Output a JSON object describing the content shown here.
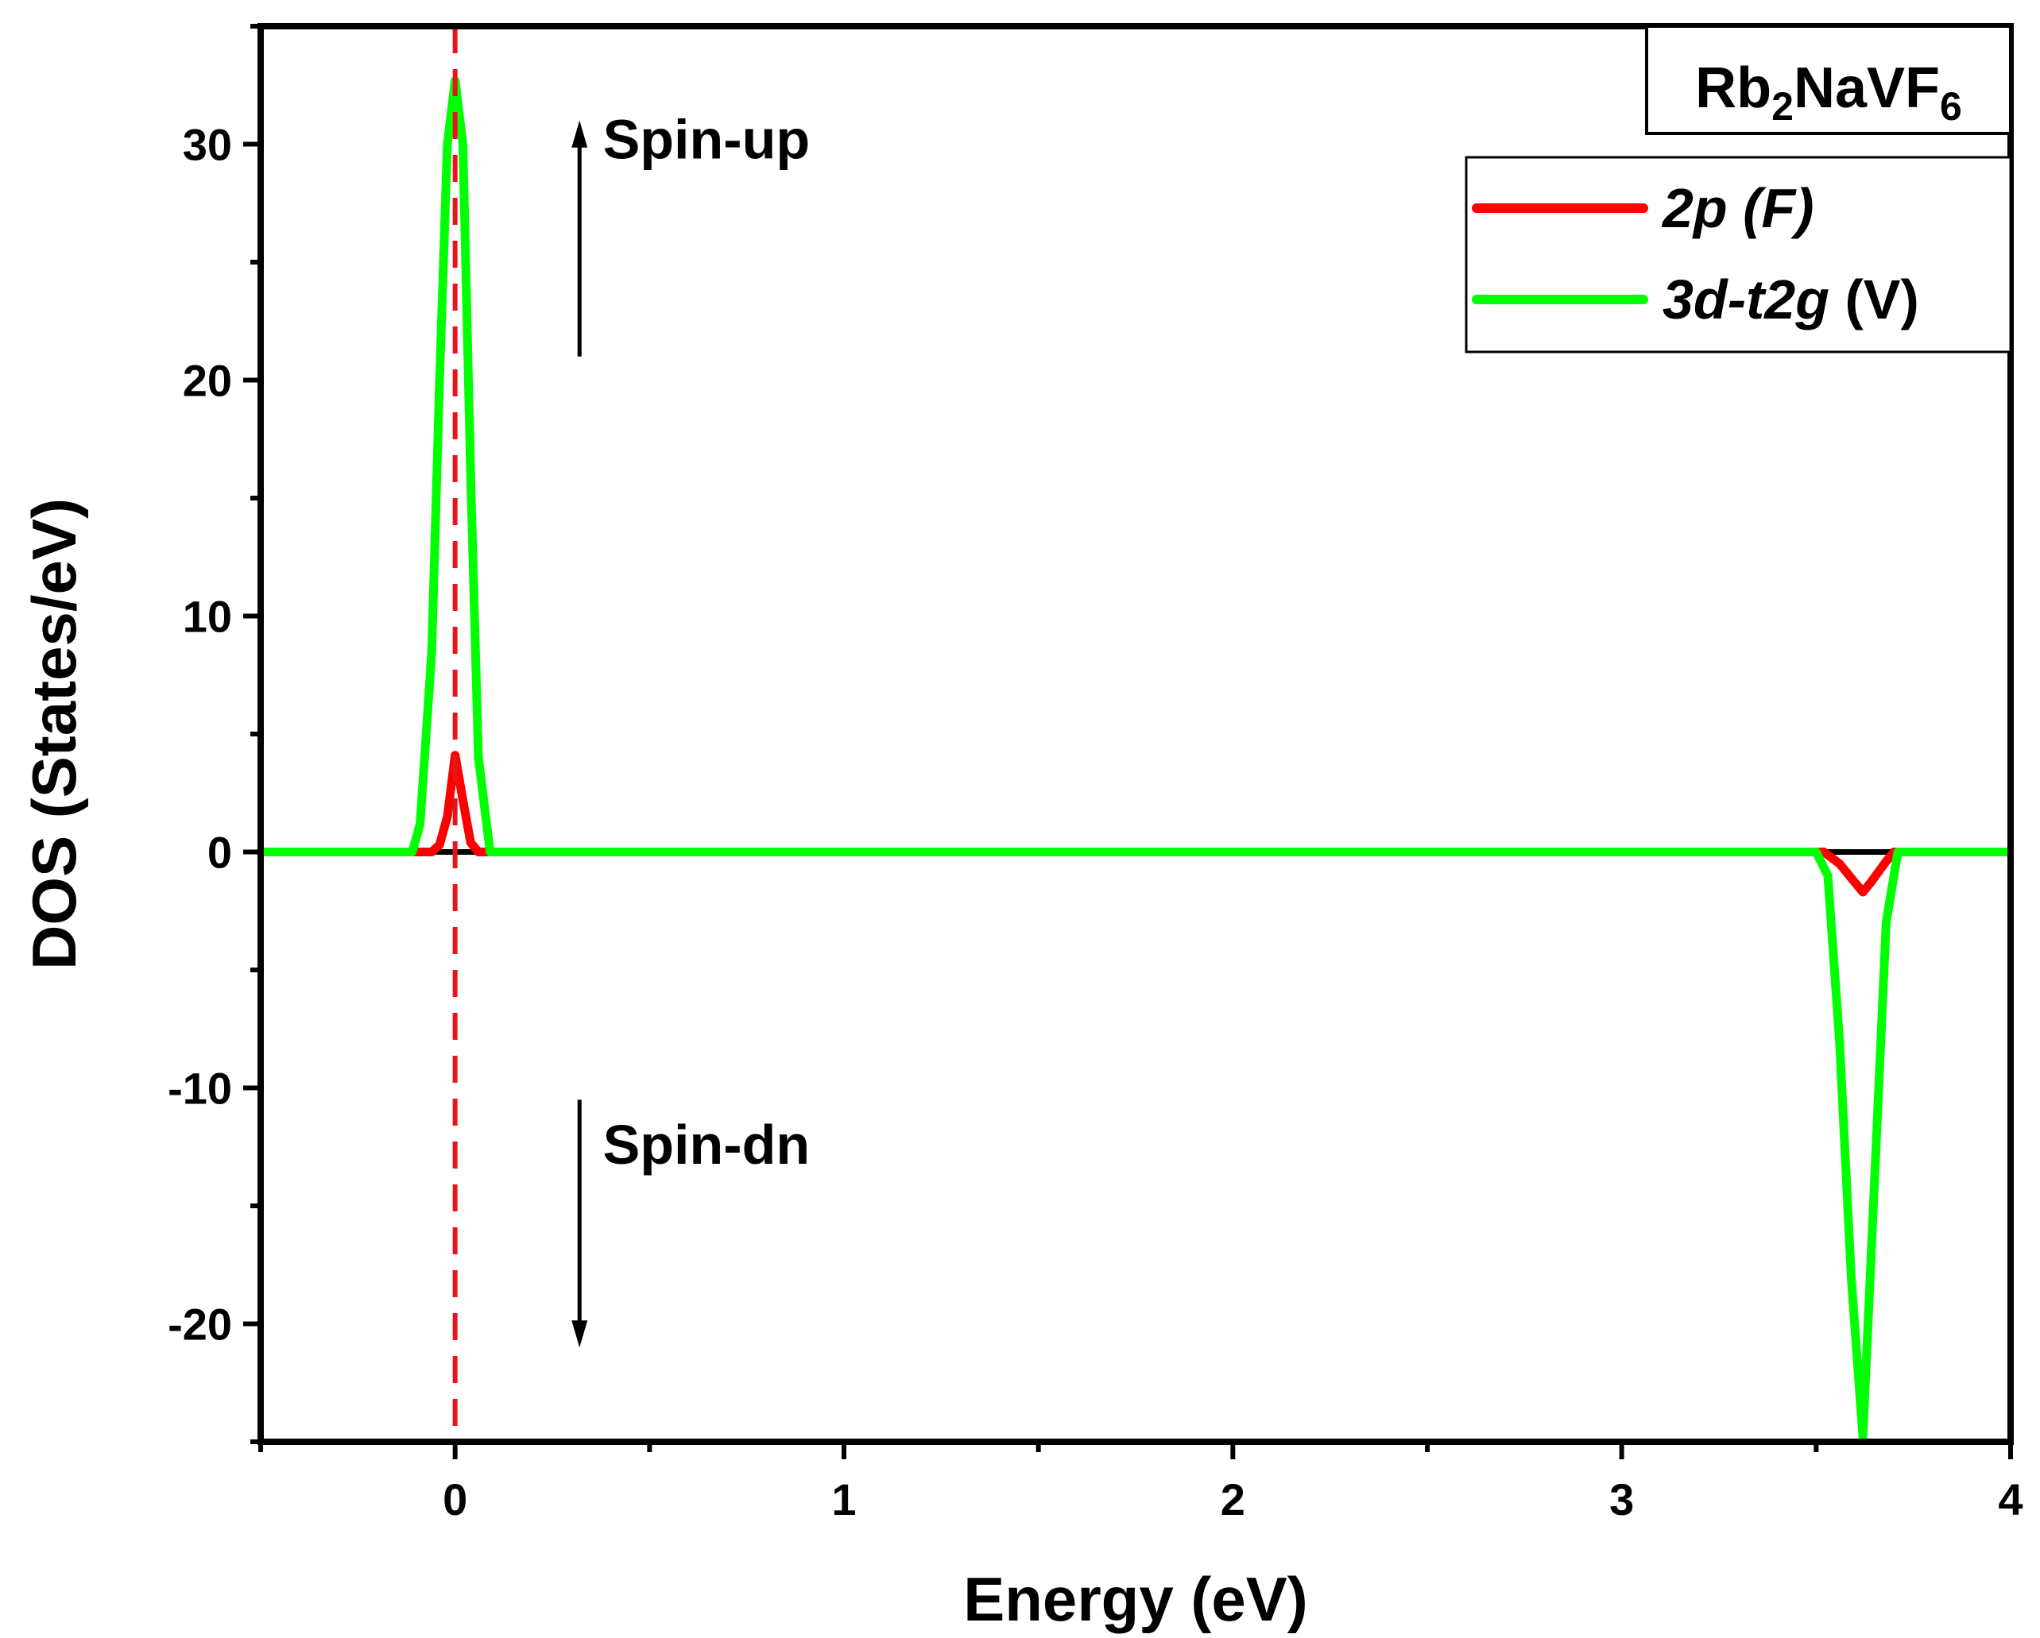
{
  "chart_data": {
    "type": "line",
    "title": "",
    "xlabel": "Energy (eV)",
    "ylabel": "DOS (States/eV)",
    "xlim": [
      -0.5,
      4
    ],
    "ylim": [
      -25,
      35
    ],
    "xticks": [
      0,
      1,
      2,
      3,
      4
    ],
    "yticks": [
      -20,
      -10,
      0,
      10,
      20,
      30
    ],
    "xtick_labels": [
      "0",
      "1",
      "2",
      "3",
      "4"
    ],
    "ytick_labels": [
      "-20",
      "-10",
      "0",
      "10",
      "20",
      "30"
    ],
    "grid": false,
    "legend_position": "top-right",
    "sample_label": {
      "base": "Rb",
      "sub1": "2",
      "mid": "NaVF",
      "sub2": "6"
    },
    "fermi_level": {
      "x": 0,
      "color": "#e8141a",
      "style": "dashed"
    },
    "annotations": [
      {
        "text": "Spin-up",
        "arrow": "up",
        "arrow_x": 0.32,
        "arrow_from": 21,
        "arrow_to": 31,
        "text_x": 0.38,
        "text_y": 30.2
      },
      {
        "text": "Spin-dn",
        "arrow": "down",
        "arrow_x": 0.32,
        "arrow_from": -10.5,
        "arrow_to": -21,
        "text_x": 0.38,
        "text_y": -12.4
      }
    ],
    "series": [
      {
        "name": "2p (F)",
        "name_main": "2p (F)",
        "name_rest": "",
        "color": "#ff0000",
        "x": [
          -0.5,
          -0.06,
          -0.04,
          -0.02,
          0.0,
          0.02,
          0.04,
          0.06,
          3.52,
          3.56,
          3.6,
          3.62,
          3.64,
          3.68,
          3.7,
          4.0
        ],
        "y": [
          0,
          0,
          0.3,
          1.5,
          4.1,
          2.2,
          0.4,
          0,
          0,
          -0.5,
          -1.3,
          -1.7,
          -1.3,
          -0.4,
          0,
          0
        ]
      },
      {
        "name": "3d-t2g (V)",
        "name_main": "3d-t2g",
        "name_rest": " (V)",
        "color": "#00ff00",
        "x": [
          -0.5,
          -0.11,
          -0.09,
          -0.06,
          -0.04,
          -0.02,
          0.0,
          0.02,
          0.04,
          0.06,
          0.09,
          3.5,
          3.53,
          3.56,
          3.59,
          3.62,
          3.65,
          3.68,
          3.71,
          4.0
        ],
        "y": [
          0,
          0,
          1.2,
          8.5,
          20,
          30,
          32.7,
          30,
          16,
          4,
          0,
          0,
          -1,
          -8,
          -18,
          -24.8,
          -14,
          -3,
          0,
          0
        ]
      }
    ]
  }
}
